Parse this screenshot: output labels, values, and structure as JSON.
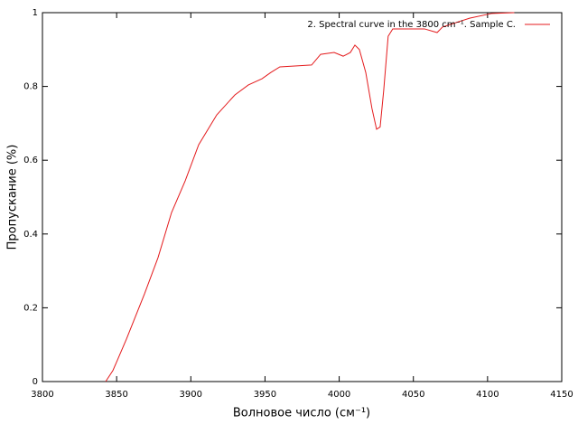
{
  "chart_data": {
    "type": "line",
    "xlabel": "Волновое число (см⁻¹)",
    "ylabel": "Пропускание (%)",
    "x": [
      3842.6,
      3847.5,
      3856.6,
      3868.8,
      3877.9,
      3887,
      3896.2,
      3905.3,
      3917.5,
      3929.7,
      3938.8,
      3948,
      3954,
      3960,
      3981.4,
      3987.5,
      3996.6,
      4002.7,
      4007.5,
      4010.6,
      4013.6,
      4017.9,
      4022.1,
      4025.2,
      4027.6,
      4030,
      4033,
      4036.1,
      4057.5,
      4066,
      4069.6,
      4087.9,
      4103,
      4118
    ],
    "series": [
      {
        "name": "2. Spectral curve in the 3800 cm⁻¹. Sample C.",
        "color": "#e41a1c",
        "values": [
          0,
          0.03,
          0.115,
          0.238,
          0.336,
          0.458,
          0.544,
          0.642,
          0.723,
          0.777,
          0.804,
          0.821,
          0.838,
          0.853,
          0.858,
          0.887,
          0.892,
          0.882,
          0.892,
          0.912,
          0.9,
          0.838,
          0.74,
          0.684,
          0.69,
          0.789,
          0.936,
          0.956,
          0.956,
          0.946,
          0.961,
          0.985,
          0.998,
          1
        ]
      }
    ],
    "xlim": [
      3800,
      4150
    ],
    "xticks": [
      3800,
      3850,
      3900,
      3950,
      4000,
      4050,
      4100,
      4150
    ],
    "ylim": [
      0,
      1
    ],
    "yticks": [
      0,
      0.2,
      0.4,
      0.6,
      0.8,
      1
    ],
    "grid": false,
    "legend": "top-right"
  }
}
